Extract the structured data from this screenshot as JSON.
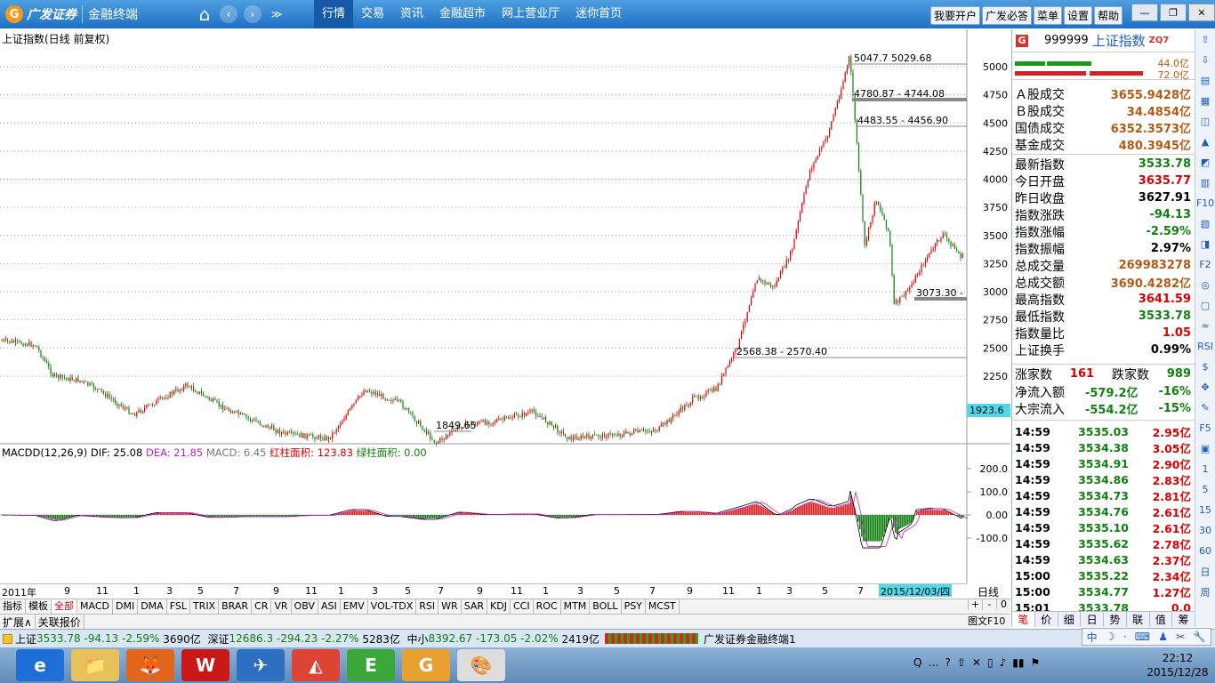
{
  "app": {
    "logo_text": "广发证券",
    "product": "金融终端"
  },
  "nav": {
    "home": "⌂",
    "back": "‹",
    "forward": "›",
    "more": "≫"
  },
  "main_menu": [
    "行情",
    "交易",
    "资讯",
    "金融超市",
    "网上营业厅",
    "迷你首页"
  ],
  "right_menu": [
    "我要开户",
    "广发必答",
    "菜单",
    "设置",
    "帮助"
  ],
  "window_buttons": {
    "min": "—",
    "restore": "❐",
    "close": "✕"
  },
  "chart": {
    "title": "上证指数(日线 前复权)",
    "price_axis": [
      "5000",
      "4750",
      "4500",
      "4250",
      "4000",
      "3750",
      "3500",
      "3250",
      "3000",
      "2750",
      "2500",
      "2250"
    ],
    "current_tag": "1923.6",
    "annotations": [
      "5047.7 5029.68",
      "4780.87 - 4744.08",
      "4483.55 - 4456.90",
      "3073.30 -",
      "2568.38 - 2570.40",
      "1849.65"
    ]
  },
  "macd": {
    "label": "MACDD(12,26,9)",
    "dif_label": "DIF:",
    "dif": "25.08",
    "dea_label": "DEA:",
    "dea": "21.85",
    "macd_label": "MACD:",
    "macd": "6.45",
    "red_label": "红柱面积:",
    "red": "123.83",
    "green_label": "绿柱面积:",
    "green": "0.00",
    "axis": [
      "200.0",
      "100.0",
      "0.00",
      "-100.0"
    ]
  },
  "time_axis": {
    "labels": [
      "2011年",
      "9",
      "11",
      "1",
      "3",
      "5",
      "7",
      "9",
      "11",
      "1",
      "3",
      "5",
      "7",
      "9",
      "11",
      "1",
      "3",
      "5",
      "7",
      "9",
      "11",
      "1",
      "3",
      "5",
      "7"
    ],
    "date_tag": "2015/12/03/四",
    "period": "日线"
  },
  "indicator_tabs": [
    "指标",
    "模板",
    "全部",
    "MACD",
    "DMI",
    "DMA",
    "FSL",
    "TRIX",
    "BRAR",
    "CR",
    "VR",
    "OBV",
    "ASI",
    "EMV",
    "VOL-TDX",
    "RSI",
    "WR",
    "SAR",
    "KDJ",
    "CCI",
    "ROC",
    "MTM",
    "BOLL",
    "PSY",
    "MCST"
  ],
  "zoom": [
    "+",
    "-",
    "0"
  ],
  "extra_tabs": [
    "扩展∧",
    "关联报价"
  ],
  "graph_tag": "图文F10",
  "quote": {
    "code": "999999",
    "name": "上证指数",
    "flag": "ZQ7",
    "bar_vals": [
      "44.0亿",
      "72.0亿"
    ],
    "rows": [
      {
        "l": "Ａ股成交",
        "v": "3655.9428亿",
        "c": "br"
      },
      {
        "l": "Ｂ股成交",
        "v": "34.4854亿",
        "c": "br"
      },
      {
        "l": "国债成交",
        "v": "6352.3573亿",
        "c": "br"
      },
      {
        "l": "基金成交",
        "v": "480.3945亿",
        "c": "br"
      },
      {
        "l": "最新指数",
        "v": "3533.78",
        "c": "dn"
      },
      {
        "l": "今日开盘",
        "v": "3635.77",
        "c": "up"
      },
      {
        "l": "昨日收盘",
        "v": "3627.91",
        "c": "bk"
      },
      {
        "l": "指数涨跌",
        "v": "-94.13",
        "c": "dn"
      },
      {
        "l": "指数涨幅",
        "v": "-2.59%",
        "c": "dn"
      },
      {
        "l": "指数振幅",
        "v": "2.97%",
        "c": "bk"
      },
      {
        "l": "总成交量",
        "v": "269983278",
        "c": "br"
      },
      {
        "l": "总成交额",
        "v": "3690.4282亿",
        "c": "br"
      },
      {
        "l": "最高指数",
        "v": "3641.59",
        "c": "up"
      },
      {
        "l": "最低指数",
        "v": "3533.78",
        "c": "dn"
      },
      {
        "l": "指数量比",
        "v": "1.05",
        "c": "up"
      },
      {
        "l": "上证换手",
        "v": "0.99%",
        "c": "bk"
      }
    ],
    "updown": {
      "up_label": "涨家数",
      "up": "161",
      "down_label": "跌家数",
      "down": "989"
    },
    "flows": [
      {
        "l": "净流入额",
        "v": "-579.2亿",
        "p": "-16%"
      },
      {
        "l": "大宗流入",
        "v": "-554.2亿",
        "p": "-15%"
      }
    ],
    "ticks": [
      {
        "t": "14:59",
        "p": "3535.03",
        "v": "2.95亿"
      },
      {
        "t": "14:59",
        "p": "3534.38",
        "v": "3.05亿"
      },
      {
        "t": "14:59",
        "p": "3534.91",
        "v": "2.90亿"
      },
      {
        "t": "14:59",
        "p": "3534.86",
        "v": "2.83亿"
      },
      {
        "t": "14:59",
        "p": "3534.73",
        "v": "2.81亿"
      },
      {
        "t": "14:59",
        "p": "3534.76",
        "v": "2.61亿"
      },
      {
        "t": "14:59",
        "p": "3535.10",
        "v": "2.61亿"
      },
      {
        "t": "14:59",
        "p": "3535.62",
        "v": "2.78亿"
      },
      {
        "t": "14:59",
        "p": "3534.63",
        "v": "2.37亿"
      },
      {
        "t": "15:00",
        "p": "3535.22",
        "v": "2.34亿"
      },
      {
        "t": "15:00",
        "p": "3534.77",
        "v": "1.27亿"
      },
      {
        "t": "15:01",
        "p": "3533.78",
        "v": "0.0"
      }
    ],
    "tabs": [
      "笔",
      "价",
      "细",
      "日",
      "势",
      "联",
      "值",
      "筹"
    ]
  },
  "sidebar": [
    "⇧",
    "⇩",
    "▤",
    "▦",
    "◫",
    "▲",
    "◩",
    "▥",
    "F10",
    "▧",
    "◨",
    "F2",
    "◎",
    "▢",
    "≈",
    "RSI",
    "$",
    "✥",
    "✎",
    "F5",
    "▣",
    "1",
    "5",
    "15",
    "30",
    "60",
    "日",
    "周"
  ],
  "status": {
    "sh_label": "上证",
    "sh_val": "3533.78",
    "sh_chg": "-94.13",
    "sh_pct": "-2.59%",
    "sh_amt": "3690亿",
    "sz_label": "深证",
    "sz_val": "12686.3",
    "sz_chg": "-294.23",
    "sz_pct": "-2.27%",
    "sz_amt": "5283亿",
    "zx_label": "中小",
    "zx_val": "8392.67",
    "zx_chg": "-173.05",
    "zx_pct": "-2.02%",
    "zx_amt": "2419亿",
    "product": "广发证券金融终端1"
  },
  "ime": [
    "中",
    "☽",
    "·",
    "⌨",
    "♟",
    "✂",
    "🔧"
  ],
  "taskbar": {
    "apps": [
      "e",
      "📁",
      "🦊",
      "W",
      "✈",
      "◭",
      "E",
      "G",
      "🎨"
    ],
    "time": "22:12",
    "date": "2015/12/28",
    "tray": [
      "Q",
      "…",
      "?",
      "⇧",
      "✕",
      "▯",
      "♪",
      "▮▮",
      "⚑"
    ]
  }
}
